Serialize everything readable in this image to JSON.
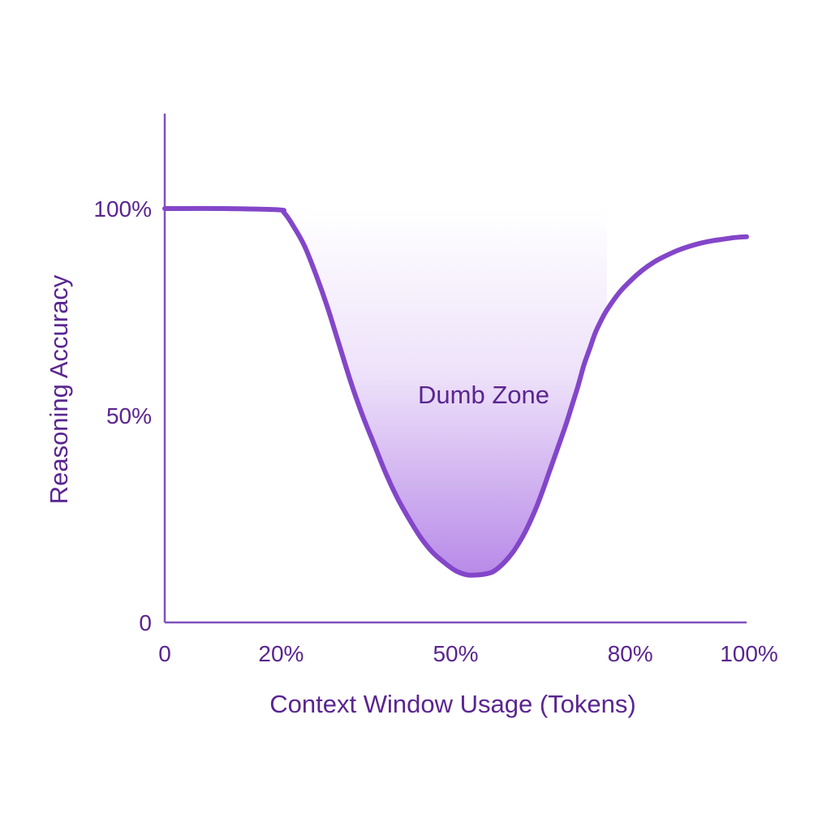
{
  "colors": {
    "line": "#8346C9",
    "axis": "#8050BE",
    "text": "#5A2590",
    "fill_top": "#FFFFFF",
    "fill_bottom": "#B889E8"
  },
  "chart_data": {
    "type": "line",
    "title": "",
    "xlabel": "Context Window Usage (Tokens)",
    "ylabel": "Reasoning Accuracy",
    "x_ticks": [
      {
        "value": 0,
        "label": "0"
      },
      {
        "value": 20,
        "label": "20%"
      },
      {
        "value": 50,
        "label": "50%"
      },
      {
        "value": 80,
        "label": "80%"
      },
      {
        "value": 100,
        "label": "100%"
      }
    ],
    "y_ticks": [
      {
        "value": 0,
        "label": "0"
      },
      {
        "value": 50,
        "label": "50%"
      },
      {
        "value": 100,
        "label": "100%"
      }
    ],
    "xlim": [
      0,
      100
    ],
    "ylim": [
      0,
      123
    ],
    "grid": false,
    "legend": "none",
    "series": [
      {
        "x": [
          0,
          10,
          19.5,
          20.5,
          22,
          24,
          26,
          28,
          30,
          32,
          34,
          36,
          38,
          40,
          42,
          44,
          46,
          48,
          50,
          52,
          54,
          56,
          57,
          58,
          59,
          60,
          61,
          62,
          63,
          64,
          65,
          66,
          67,
          68,
          69,
          70,
          71,
          72,
          73,
          74,
          75,
          76,
          78,
          80,
          82,
          84,
          86,
          88,
          90,
          92,
          94,
          96,
          98,
          100
        ],
        "y": [
          100,
          100,
          99.7,
          99,
          96,
          91,
          84,
          76,
          67,
          58,
          50,
          43,
          36,
          30,
          25,
          20.5,
          17,
          14.5,
          12.5,
          11.5,
          11.5,
          12,
          12.8,
          14,
          15.5,
          17.3,
          19.5,
          22,
          25,
          28.3,
          32,
          36,
          40,
          44,
          48,
          52.5,
          57,
          62,
          66,
          70,
          73,
          75.5,
          79.5,
          82.5,
          85,
          87,
          88.5,
          89.8,
          90.8,
          91.6,
          92.2,
          92.6,
          93,
          93.2
        ]
      }
    ],
    "shaded_region": {
      "label": "Dumb Zone",
      "x_start": 20,
      "x_end": 76
    }
  }
}
